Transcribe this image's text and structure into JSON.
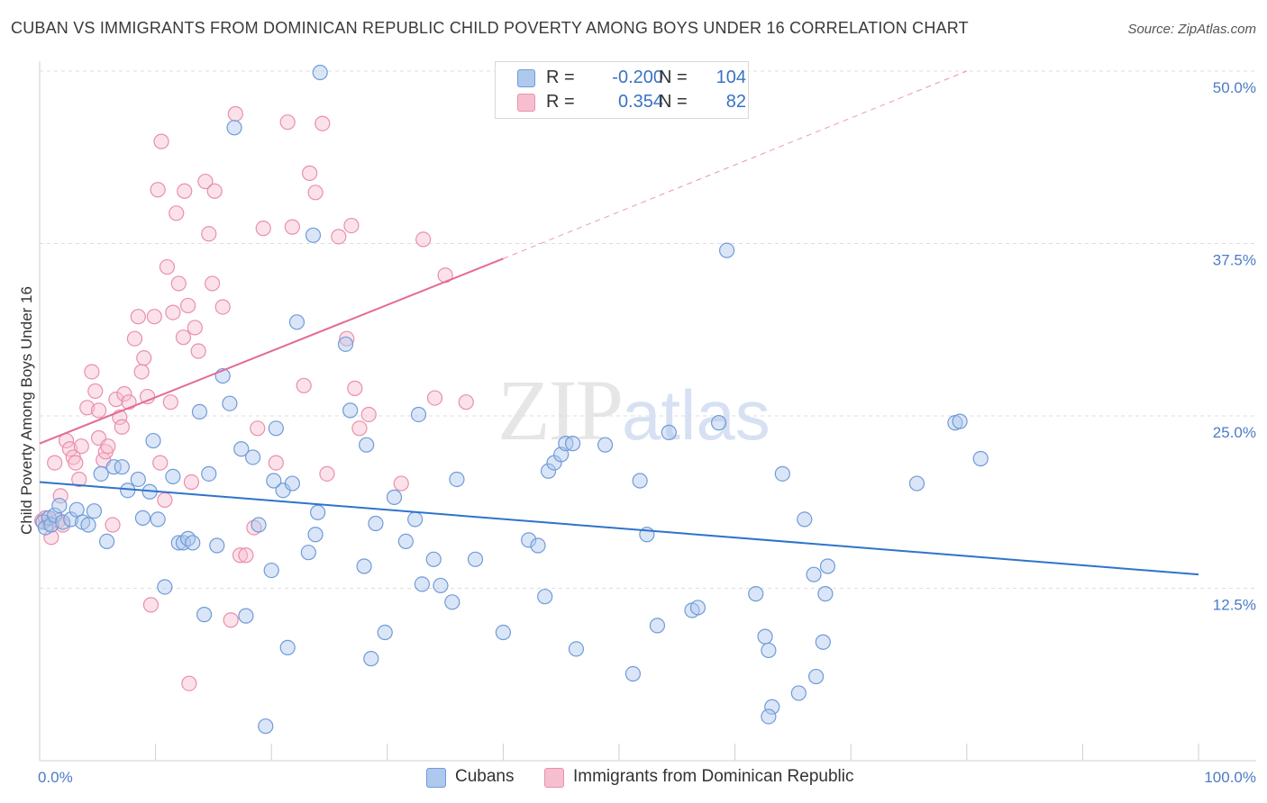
{
  "title": "CUBAN VS IMMIGRANTS FROM DOMINICAN REPUBLIC CHILD POVERTY AMONG BOYS UNDER 16 CORRELATION CHART",
  "source": "Source: ZipAtlas.com",
  "watermark": {
    "zip": "ZIP",
    "atlas": "atlas"
  },
  "legend": {
    "rows": [
      {
        "r_label": "R =",
        "r_value": "-0.200",
        "n_label": "N =",
        "n_value": "104"
      },
      {
        "r_label": "R =",
        "r_value": "0.354",
        "n_label": "N =",
        "n_value": "82"
      }
    ]
  },
  "bottom_legend": {
    "items": [
      "Cubans",
      "Immigrants from Dominican Republic"
    ]
  },
  "colors": {
    "blue_fill": "#aec8ee",
    "blue_stroke": "#6f9bd8",
    "blue_line": "#2f73cc",
    "pink_fill": "#f6bfd0",
    "pink_stroke": "#ea8fab",
    "pink_line": "#e46a94",
    "grid": "#dedede",
    "axis_text": "#4a7cc7"
  },
  "chart_data": {
    "type": "scatter",
    "title": "CUBAN VS IMMIGRANTS FROM DOMINICAN REPUBLIC CHILD POVERTY AMONG BOYS UNDER 16 CORRELATION CHART",
    "xlabel": "",
    "ylabel": "Child Poverty Among Boys Under 16",
    "xlim": [
      0,
      100
    ],
    "ylim": [
      0,
      50
    ],
    "x_tick_labels": [
      "0.0%",
      "100.0%"
    ],
    "y_ticks": [
      12.5,
      25.0,
      37.5,
      50.0
    ],
    "y_tick_labels": [
      "12.5%",
      "25.0%",
      "37.5%",
      "50.0%"
    ],
    "grid": true,
    "legend_position": "top-center",
    "series": [
      {
        "name": "Cubans",
        "r": -0.2,
        "n": 104,
        "trend": {
          "x": [
            0,
            100
          ],
          "y": [
            20.2,
            13.5
          ],
          "style": "solid"
        },
        "points": [
          [
            0.3,
            17.3
          ],
          [
            0.5,
            16.9
          ],
          [
            0.8,
            17.6
          ],
          [
            1.0,
            17.1
          ],
          [
            1.3,
            17.8
          ],
          [
            1.7,
            18.5
          ],
          [
            2.0,
            17.3
          ],
          [
            2.7,
            17.5
          ],
          [
            3.2,
            18.2
          ],
          [
            3.7,
            17.3
          ],
          [
            4.2,
            17.1
          ],
          [
            4.7,
            18.1
          ],
          [
            5.3,
            20.8
          ],
          [
            5.8,
            15.9
          ],
          [
            6.4,
            21.3
          ],
          [
            7.1,
            21.3
          ],
          [
            7.6,
            19.6
          ],
          [
            8.5,
            20.4
          ],
          [
            8.9,
            17.6
          ],
          [
            9.5,
            19.5
          ],
          [
            9.8,
            23.2
          ],
          [
            10.2,
            17.5
          ],
          [
            10.8,
            12.6
          ],
          [
            11.5,
            20.6
          ],
          [
            12.0,
            15.8
          ],
          [
            12.4,
            15.8
          ],
          [
            12.8,
            16.1
          ],
          [
            13.2,
            15.8
          ],
          [
            13.8,
            25.3
          ],
          [
            14.2,
            10.6
          ],
          [
            14.6,
            20.8
          ],
          [
            15.3,
            15.6
          ],
          [
            15.8,
            27.9
          ],
          [
            16.4,
            25.9
          ],
          [
            16.8,
            45.9
          ],
          [
            17.4,
            22.6
          ],
          [
            17.8,
            10.5
          ],
          [
            18.4,
            22.0
          ],
          [
            18.9,
            17.1
          ],
          [
            19.5,
            2.5
          ],
          [
            20.0,
            13.8
          ],
          [
            20.4,
            24.1
          ],
          [
            21.0,
            19.6
          ],
          [
            21.4,
            8.2
          ],
          [
            21.8,
            20.1
          ],
          [
            22.2,
            31.8
          ],
          [
            23.2,
            15.1
          ],
          [
            23.8,
            16.4
          ],
          [
            24.0,
            18.0
          ],
          [
            23.6,
            38.1
          ],
          [
            24.2,
            49.9
          ],
          [
            26.4,
            30.2
          ],
          [
            26.8,
            25.4
          ],
          [
            28.0,
            14.1
          ],
          [
            28.2,
            22.9
          ],
          [
            28.6,
            7.4
          ],
          [
            29.0,
            17.2
          ],
          [
            29.8,
            9.3
          ],
          [
            30.6,
            19.1
          ],
          [
            31.6,
            15.9
          ],
          [
            32.4,
            17.5
          ],
          [
            32.7,
            25.1
          ],
          [
            33.0,
            12.8
          ],
          [
            34.0,
            14.6
          ],
          [
            34.6,
            12.7
          ],
          [
            35.6,
            11.5
          ],
          [
            36.0,
            20.4
          ],
          [
            37.6,
            14.6
          ],
          [
            40.0,
            9.3
          ],
          [
            42.2,
            16.0
          ],
          [
            43.0,
            15.6
          ],
          [
            43.6,
            11.9
          ],
          [
            43.9,
            21.0
          ],
          [
            44.4,
            21.6
          ],
          [
            45.0,
            22.2
          ],
          [
            45.4,
            23.0
          ],
          [
            46.0,
            23.0
          ],
          [
            46.3,
            8.1
          ],
          [
            48.8,
            22.9
          ],
          [
            51.2,
            6.3
          ],
          [
            51.8,
            20.3
          ],
          [
            52.4,
            16.4
          ],
          [
            53.3,
            9.8
          ],
          [
            54.3,
            23.8
          ],
          [
            56.3,
            10.9
          ],
          [
            56.8,
            11.1
          ],
          [
            58.6,
            24.5
          ],
          [
            59.3,
            37.0
          ],
          [
            61.8,
            12.1
          ],
          [
            62.6,
            9.0
          ],
          [
            62.9,
            8.0
          ],
          [
            63.2,
            3.9
          ],
          [
            62.9,
            3.2
          ],
          [
            64.1,
            20.8
          ],
          [
            66.0,
            17.5
          ],
          [
            67.0,
            6.1
          ],
          [
            67.6,
            8.6
          ],
          [
            67.8,
            12.1
          ],
          [
            68.0,
            14.1
          ],
          [
            66.8,
            13.5
          ],
          [
            75.7,
            20.1
          ],
          [
            79.0,
            24.5
          ],
          [
            79.4,
            24.6
          ],
          [
            81.2,
            21.9
          ],
          [
            65.5,
            4.9
          ],
          [
            20.2,
            20.3
          ]
        ]
      },
      {
        "name": "Immigrants from Dominican Republic",
        "r": 0.354,
        "n": 82,
        "trend": {
          "x": [
            0,
            40.0
          ],
          "y": [
            23.0,
            36.4
          ],
          "style": "solid",
          "dashed_extension_to": [
            80,
            50.0
          ]
        },
        "points": [
          [
            0.2,
            17.4
          ],
          [
            0.5,
            17.6
          ],
          [
            0.8,
            17.2
          ],
          [
            1.0,
            16.2
          ],
          [
            1.3,
            21.6
          ],
          [
            1.6,
            17.4
          ],
          [
            1.8,
            19.2
          ],
          [
            2.0,
            17.1
          ],
          [
            2.3,
            23.2
          ],
          [
            2.6,
            22.6
          ],
          [
            2.9,
            22.0
          ],
          [
            3.4,
            20.4
          ],
          [
            3.6,
            22.8
          ],
          [
            4.1,
            25.6
          ],
          [
            4.5,
            28.2
          ],
          [
            4.8,
            26.8
          ],
          [
            5.1,
            23.4
          ],
          [
            5.5,
            21.8
          ],
          [
            5.7,
            22.4
          ],
          [
            5.9,
            22.8
          ],
          [
            6.3,
            17.1
          ],
          [
            6.6,
            26.2
          ],
          [
            6.9,
            24.9
          ],
          [
            7.1,
            24.2
          ],
          [
            7.3,
            26.6
          ],
          [
            7.7,
            26.0
          ],
          [
            8.2,
            30.6
          ],
          [
            8.5,
            32.2
          ],
          [
            8.8,
            28.2
          ],
          [
            9.0,
            29.2
          ],
          [
            9.3,
            26.4
          ],
          [
            9.6,
            11.3
          ],
          [
            9.9,
            32.2
          ],
          [
            10.2,
            41.4
          ],
          [
            10.4,
            21.6
          ],
          [
            10.5,
            44.9
          ],
          [
            10.8,
            18.9
          ],
          [
            11.0,
            35.8
          ],
          [
            11.3,
            26.0
          ],
          [
            11.5,
            32.5
          ],
          [
            11.8,
            39.7
          ],
          [
            12.0,
            34.6
          ],
          [
            12.4,
            30.7
          ],
          [
            12.5,
            41.3
          ],
          [
            12.8,
            33.0
          ],
          [
            12.9,
            5.6
          ],
          [
            13.1,
            20.2
          ],
          [
            13.4,
            31.4
          ],
          [
            13.7,
            29.7
          ],
          [
            14.3,
            42.0
          ],
          [
            14.6,
            38.2
          ],
          [
            14.9,
            34.6
          ],
          [
            15.1,
            41.3
          ],
          [
            15.8,
            32.9
          ],
          [
            16.5,
            10.2
          ],
          [
            16.9,
            46.9
          ],
          [
            17.3,
            14.9
          ],
          [
            17.8,
            14.9
          ],
          [
            18.5,
            16.9
          ],
          [
            18.8,
            24.1
          ],
          [
            19.3,
            38.6
          ],
          [
            20.4,
            21.6
          ],
          [
            21.4,
            46.3
          ],
          [
            21.8,
            38.7
          ],
          [
            22.8,
            27.2
          ],
          [
            23.3,
            42.6
          ],
          [
            23.8,
            41.2
          ],
          [
            24.4,
            46.2
          ],
          [
            24.8,
            20.8
          ],
          [
            25.8,
            38.0
          ],
          [
            26.5,
            30.6
          ],
          [
            26.9,
            38.8
          ],
          [
            27.2,
            27.0
          ],
          [
            27.6,
            24.1
          ],
          [
            28.4,
            25.1
          ],
          [
            31.2,
            20.1
          ],
          [
            33.1,
            37.8
          ],
          [
            34.1,
            26.3
          ],
          [
            35.0,
            35.2
          ],
          [
            36.8,
            26.0
          ],
          [
            5.1,
            25.4
          ],
          [
            3.1,
            21.6
          ]
        ]
      }
    ]
  }
}
